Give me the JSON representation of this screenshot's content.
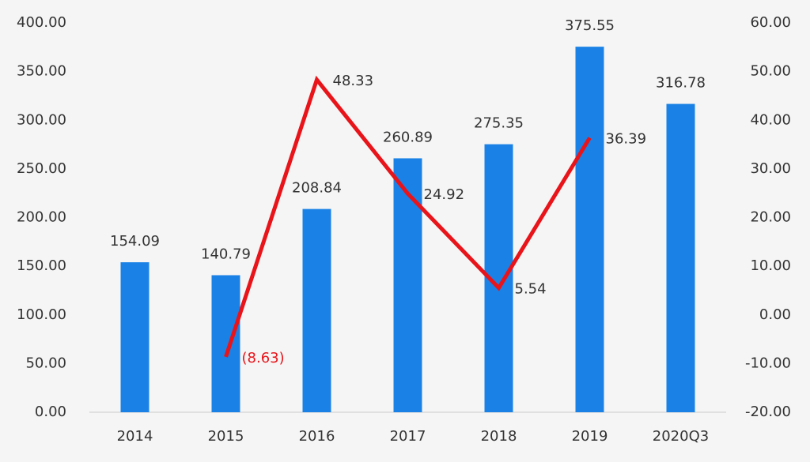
{
  "chart_data": {
    "type": "bar_line",
    "categories": [
      "2014",
      "2015",
      "2016",
      "2017",
      "2018",
      "2019",
      "2020Q3"
    ],
    "series": [
      {
        "name": "bar",
        "type": "bar",
        "color": "#1a82e6",
        "values": [
          154.09,
          140.79,
          208.84,
          260.89,
          275.35,
          375.55,
          316.78
        ]
      },
      {
        "name": "line",
        "type": "line",
        "axis": "y2",
        "color": "#e8141a",
        "values": [
          null,
          -8.63,
          48.33,
          24.92,
          5.54,
          36.39,
          null
        ],
        "value_labels": [
          null,
          "(8.63)",
          "48.33",
          "24.92",
          "5.54",
          "36.39",
          null
        ]
      }
    ],
    "ylim": [
      0,
      400
    ],
    "yticks": [
      {
        "value": 0,
        "label": "0.00"
      },
      {
        "value": 50,
        "label": "50.00"
      },
      {
        "value": 100,
        "label": "100.00"
      },
      {
        "value": 150,
        "label": "150.00"
      },
      {
        "value": 200,
        "label": "200.00"
      },
      {
        "value": 250,
        "label": "250.00"
      },
      {
        "value": 300,
        "label": "300.00"
      },
      {
        "value": 350,
        "label": "350.00"
      },
      {
        "value": 400,
        "label": "400.00"
      }
    ],
    "y2lim": [
      -20,
      60
    ],
    "y2ticks": [
      {
        "value": -20,
        "label": "-20.00"
      },
      {
        "value": -10,
        "label": "-10.00"
      },
      {
        "value": 0,
        "label": "0.00"
      },
      {
        "value": 10,
        "label": "10.00"
      },
      {
        "value": 20,
        "label": "20.00"
      },
      {
        "value": 30,
        "label": "30.00"
      },
      {
        "value": 40,
        "label": "40.00"
      },
      {
        "value": 50,
        "label": "50.00"
      },
      {
        "value": 60,
        "label": "60.00"
      }
    ],
    "grid": false
  }
}
